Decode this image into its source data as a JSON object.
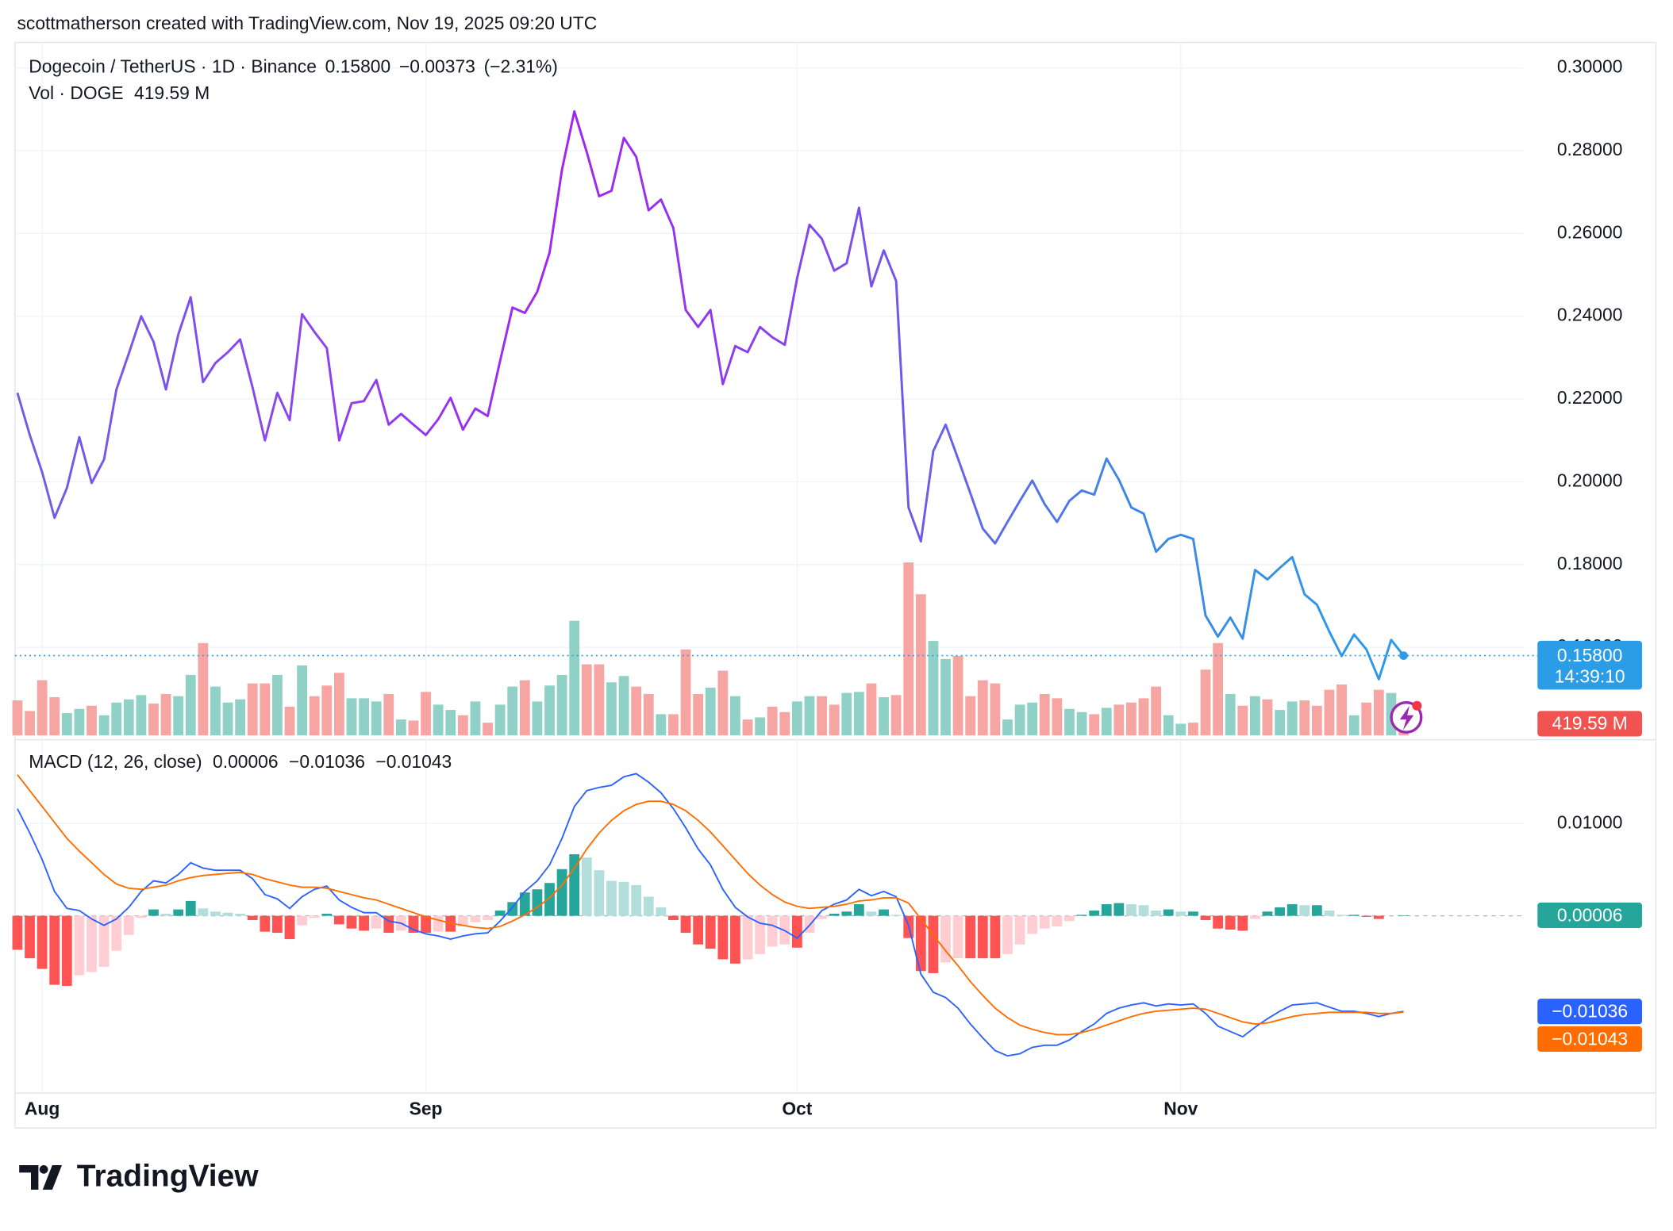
{
  "header": "scottmatherson created with TradingView.com, Nov 19, 2025 09:20 UTC",
  "footer": "TradingView",
  "chart_data": [
    {
      "type": "line",
      "series": [
        {
          "name": "Dogecoin / TetherUS · 1D · Binance",
          "colors": [
            "#6d5fe6",
            "#8b45ee",
            "#a224f0",
            "#7d4cec",
            "#3d86e6",
            "#2b9be6"
          ],
          "values": [
            0.2215,
            0.2113,
            0.2023,
            0.1913,
            0.1985,
            0.2108,
            0.1997,
            0.2054,
            0.2223,
            0.231,
            0.24,
            0.2338,
            0.2223,
            0.2356,
            0.2446,
            0.2241,
            0.2287,
            0.2313,
            0.2344,
            0.2228,
            0.21,
            0.2215,
            0.2149,
            0.2405,
            0.2362,
            0.2323,
            0.21,
            0.219,
            0.2195,
            0.2246,
            0.2138,
            0.2164,
            0.2138,
            0.2113,
            0.2151,
            0.2203,
            0.2126,
            0.2177,
            0.2159,
            0.2292,
            0.2421,
            0.2408,
            0.2459,
            0.2554,
            0.2754,
            0.2895,
            0.2797,
            0.269,
            0.2703,
            0.2831,
            0.2785,
            0.2656,
            0.2682,
            0.2613,
            0.2415,
            0.2374,
            0.2415,
            0.2236,
            0.2328,
            0.2313,
            0.2374,
            0.2349,
            0.2331,
            0.2492,
            0.2621,
            0.2587,
            0.251,
            0.2528,
            0.2662,
            0.2472,
            0.2559,
            0.2485,
            0.1938,
            0.1856,
            0.2074,
            0.2138,
            0.2056,
            0.1972,
            0.1887,
            0.1851,
            0.1903,
            0.1954,
            0.2003,
            0.1946,
            0.1903,
            0.1954,
            0.1979,
            0.1969,
            0.2056,
            0.2005,
            0.1938,
            0.1923,
            0.1831,
            0.1862,
            0.1872,
            0.1862,
            0.1677,
            0.1626,
            0.1672,
            0.1621,
            0.1787,
            0.1764,
            0.1792,
            0.1818,
            0.1728,
            0.1703,
            0.1638,
            0.1579,
            0.1631,
            0.1595,
            0.1523,
            0.1618,
            0.158
          ],
          "last_label": "0.15800",
          "change": {
            "value": -0.00373,
            "label": "−0.00373"
          },
          "change_pct": {
            "value": -2.31,
            "label": "(−2.31%)"
          },
          "countdown": "14:39:10",
          "label_color": "#2a9de6"
        }
      ],
      "xlim": [
        -0.2,
        121.7
      ],
      "xticks": [
        {
          "value": 2,
          "label": "Aug"
        },
        {
          "value": 33,
          "label": "Sep"
        },
        {
          "value": 63,
          "label": "Oct"
        },
        {
          "value": 94,
          "label": "Nov"
        }
      ],
      "ylim": [
        0.13872,
        0.30615
      ],
      "yticks": [
        {
          "value": 0.16,
          "label": "0.16000"
        },
        {
          "value": 0.18,
          "label": "0.18000"
        },
        {
          "value": 0.2,
          "label": "0.20000"
        },
        {
          "value": 0.22,
          "label": "0.22000"
        },
        {
          "value": 0.24,
          "label": "0.24000"
        },
        {
          "value": 0.26,
          "label": "0.26000"
        },
        {
          "value": 0.28,
          "label": "0.28000"
        },
        {
          "value": 0.3,
          "label": "0.30000"
        }
      ],
      "grid": true
    },
    {
      "type": "bar",
      "name": "Vol · DOGE",
      "colors": {
        "up": "#8fd1c7",
        "down": "#f6a5a3",
        "label": "#f05350"
      },
      "values": [
        1254,
        874,
        1976,
        1368,
        798,
        950,
        1064,
        722,
        1178,
        1292,
        1444,
        1140,
        1482,
        1406,
        2166,
        3306,
        1748,
        1178,
        1292,
        1862,
        1862,
        2166,
        1026,
        2508,
        1406,
        1786,
        2242,
        1330,
        1330,
        1216,
        1482,
        570,
        532,
        1558,
        1102,
        912,
        722,
        1216,
        456,
        1102,
        1748,
        1976,
        1216,
        1786,
        2166,
        4104,
        2546,
        2546,
        1900,
        2128,
        1748,
        1482,
        760,
        760,
        3078,
        1482,
        1710,
        2318,
        1406,
        570,
        646,
        1026,
        836,
        1216,
        1406,
        1406,
        1102,
        1520,
        1558,
        1862,
        1368,
        1444,
        6194,
        5054,
        3382,
        2736,
        2850,
        1406,
        1976,
        1862,
        570,
        1102,
        1178,
        1482,
        1330,
        950,
        836,
        760,
        988,
        1102,
        1178,
        1330,
        1748,
        722,
        418,
        456,
        2356,
        3306,
        1482,
        1064,
        1406,
        1292,
        912,
        1216,
        1254,
        1064,
        1634,
        1824,
        722,
        1178,
        1634,
        1520,
        419.59
      ],
      "last_label": "419.59 M"
    },
    {
      "type": "macd",
      "title": "MACD (12, 26, close)",
      "histogram": {
        "colors": {
          "up_rising": "#26a69a",
          "up_falling": "#b2dfdb",
          "down_falling": "#ff5252",
          "down_rising": "#ffcdd2"
        },
        "values": [
          -0.00368,
          -0.0046,
          -0.00575,
          -0.00747,
          -0.00759,
          -0.00644,
          -0.00609,
          -0.00552,
          -0.00379,
          -0.00207,
          -0.00023,
          0.00069,
          0.00023,
          0.00069,
          0.00161,
          0.0008,
          0.00046,
          0.00034,
          0.00023,
          -0.00046,
          -0.00172,
          -0.00184,
          -0.00253,
          -0.00103,
          -0.00023,
          0.00023,
          -0.00092,
          -0.00138,
          -0.00161,
          -0.00138,
          -0.00184,
          -0.00161,
          -0.00184,
          -0.00184,
          -0.00172,
          -0.00172,
          -0.00115,
          -0.00069,
          -0.00046,
          0.00057,
          0.00149,
          0.00253,
          0.00287,
          0.00356,
          0.00506,
          0.00667,
          0.00632,
          0.00494,
          0.00379,
          0.00368,
          0.00333,
          0.00207,
          0.00092,
          -0.00046,
          -0.00184,
          -0.0031,
          -0.00356,
          -0.00471,
          -0.00517,
          -0.00471,
          -0.00414,
          -0.00333,
          -0.0031,
          -0.00345,
          -0.00184,
          -0.00034,
          0.00023,
          0.00046,
          0.00126,
          0.00046,
          0.00069,
          0.00011,
          -0.00241,
          -0.00598,
          -0.00621,
          -0.00506,
          -0.0046,
          -0.0046,
          -0.0046,
          -0.0046,
          -0.00414,
          -0.0031,
          -0.00195,
          -0.00138,
          -0.00115,
          -0.00057,
          0.00011,
          0.00057,
          0.00126,
          0.00138,
          0.00126,
          0.00115,
          0.00057,
          0.00069,
          0.00046,
          0.00046,
          -0.00046,
          -0.00138,
          -0.00149,
          -0.00161,
          -0.00034,
          0.00046,
          0.00092,
          0.00126,
          0.00115,
          0.00115,
          0.00057,
          0.00011,
          0.00011,
          -0.00011,
          -0.00034,
          0,
          6e-05
        ],
        "last_label": "0.00006",
        "label_color": "#26a69a"
      },
      "macd": {
        "color": "#2962ff",
        "values": [
          0.01161,
          0.00897,
          0.00609,
          0.00264,
          0.0008,
          0.00057,
          -0.00034,
          -0.00103,
          -0.00034,
          0.00092,
          0.00264,
          0.00379,
          0.00356,
          0.00448,
          0.00575,
          0.00517,
          0.00494,
          0.00494,
          0.00494,
          0.00402,
          0.0023,
          0.00184,
          0.0008,
          0.00207,
          0.00287,
          0.00322,
          0.00172,
          0.00092,
          0.00034,
          0.00034,
          -0.00057,
          -0.0008,
          -0.00149,
          -0.00195,
          -0.00218,
          -0.00253,
          -0.00218,
          -0.00195,
          -0.00184,
          -0.00057,
          0.00092,
          0.00264,
          0.00379,
          0.00552,
          0.00839,
          0.01184,
          0.01356,
          0.01391,
          0.01414,
          0.01506,
          0.0154,
          0.01448,
          0.01333,
          0.01161,
          0.00954,
          0.00724,
          0.00552,
          0.00287,
          0.00092,
          -0.00011,
          -0.0008,
          -0.00103,
          -0.00161,
          -0.00241,
          -0.00103,
          0.00057,
          0.00126,
          0.00172,
          0.00287,
          0.00218,
          0.00264,
          0.00207,
          -0.00103,
          -0.00632,
          -0.00828,
          -0.00885,
          -0.01,
          -0.01172,
          -0.01322,
          -0.0146,
          -0.01517,
          -0.01494,
          -0.01425,
          -0.01402,
          -0.01402,
          -0.01345,
          -0.01253,
          -0.01172,
          -0.01057,
          -0.01,
          -0.00966,
          -0.00943,
          -0.00977,
          -0.00954,
          -0.00966,
          -0.00954,
          -0.01057,
          -0.01195,
          -0.01253,
          -0.0131,
          -0.01207,
          -0.01115,
          -0.01034,
          -0.00966,
          -0.00954,
          -0.00943,
          -0.00989,
          -0.01034,
          -0.01034,
          -0.01057,
          -0.01092,
          -0.01057,
          -0.01036
        ],
        "last_label": "−0.01036"
      },
      "signal": {
        "color": "#ff6d00",
        "values": [
          0.01529,
          0.01356,
          0.01184,
          0.01011,
          0.00839,
          0.00701,
          0.00575,
          0.00448,
          0.00345,
          0.00299,
          0.00287,
          0.0031,
          0.00333,
          0.00379,
          0.00414,
          0.00437,
          0.00448,
          0.0046,
          0.00471,
          0.00448,
          0.00402,
          0.00368,
          0.00333,
          0.0031,
          0.0031,
          0.00299,
          0.00264,
          0.0023,
          0.00195,
          0.00172,
          0.00126,
          0.0008,
          0.00034,
          -0.00011,
          -0.00046,
          -0.0008,
          -0.00103,
          -0.00126,
          -0.00138,
          -0.00115,
          -0.00057,
          0.00011,
          0.00092,
          0.00195,
          0.00333,
          0.00517,
          0.00724,
          0.00897,
          0.01034,
          0.01138,
          0.01207,
          0.01241,
          0.01241,
          0.01207,
          0.01138,
          0.01034,
          0.00908,
          0.00759,
          0.00609,
          0.0046,
          0.00333,
          0.0023,
          0.00149,
          0.00103,
          0.0008,
          0.00092,
          0.00103,
          0.00126,
          0.00161,
          0.00172,
          0.00195,
          0.00195,
          0.00138,
          -0.00034,
          -0.00207,
          -0.00379,
          -0.0054,
          -0.00713,
          -0.00862,
          -0.01,
          -0.01103,
          -0.01184,
          -0.0123,
          -0.01264,
          -0.01287,
          -0.01287,
          -0.01264,
          -0.0123,
          -0.01184,
          -0.01138,
          -0.01092,
          -0.01057,
          -0.01034,
          -0.01023,
          -0.01011,
          -0.01,
          -0.01011,
          -0.01057,
          -0.01103,
          -0.01149,
          -0.01172,
          -0.01161,
          -0.01126,
          -0.01092,
          -0.01069,
          -0.01057,
          -0.01046,
          -0.01046,
          -0.01046,
          -0.01046,
          -0.01057,
          -0.01057,
          -0.01043
        ],
        "last_label": "−0.01043"
      },
      "ylim": [
        -0.0192,
        0.01874
      ],
      "yticks": [
        {
          "value": 0.01,
          "label": "0.01000"
        }
      ],
      "grid": true
    }
  ]
}
